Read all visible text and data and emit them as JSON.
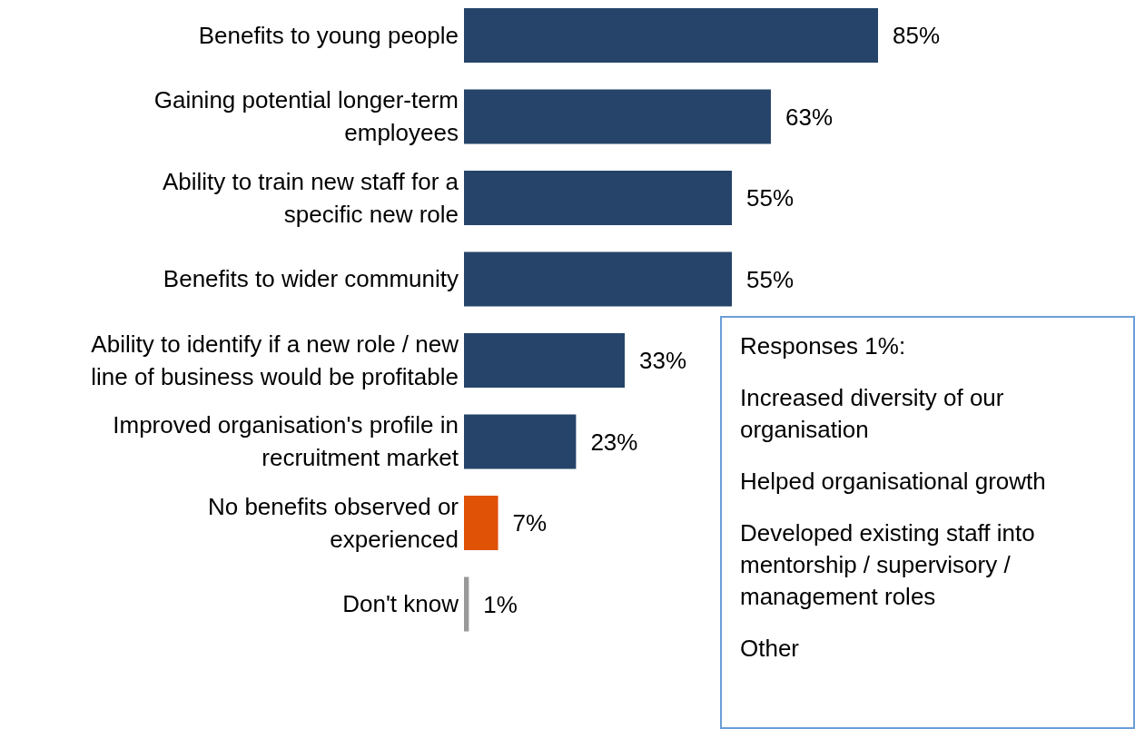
{
  "chart_data": {
    "type": "bar",
    "orientation": "horizontal",
    "categories": [
      "Benefits to young people",
      "Gaining potential longer-term\nemployees",
      "Ability to train new staff for a\nspecific new role",
      "Benefits to wider community",
      "Ability to identify if a new role / new\nline of business would be profitable",
      "Improved organisation's profile in\nrecruitment market",
      "No benefits observed or\nexperienced",
      "Don't know"
    ],
    "values": [
      85,
      63,
      55,
      55,
      33,
      23,
      7,
      1
    ],
    "colors": [
      "#264469",
      "#264469",
      "#264469",
      "#264469",
      "#264469",
      "#264469",
      "#e05206",
      "#999999"
    ],
    "value_labels": [
      "85%",
      "63%",
      "55%",
      "55%",
      "33%",
      "23%",
      "7%",
      "1%"
    ],
    "annotations": [
      "Responses 1%:",
      "Increased diversity of our organisation",
      "Helped organisational growth",
      "Developed existing staff into mentorship / supervisory / management roles",
      "Other"
    ]
  }
}
